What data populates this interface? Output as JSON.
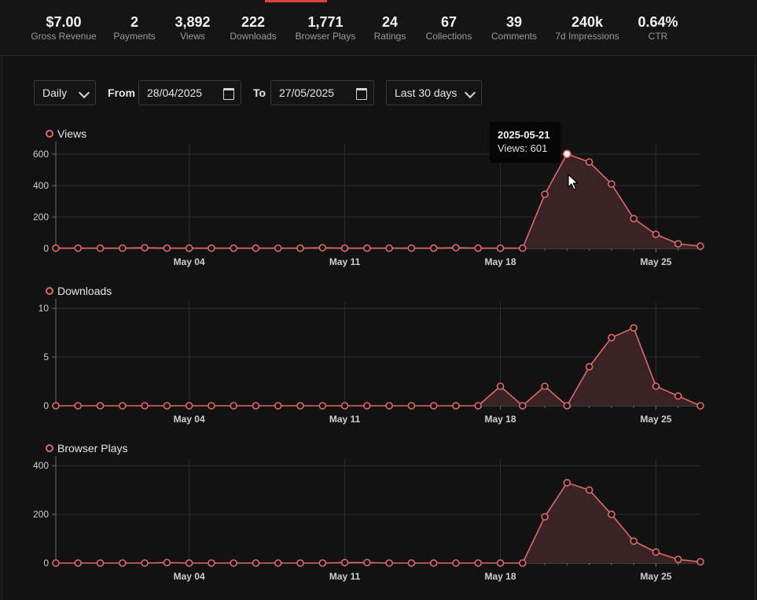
{
  "stats": [
    {
      "value": "$7.00",
      "label": "Gross Revenue"
    },
    {
      "value": "2",
      "label": "Payments"
    },
    {
      "value": "3,892",
      "label": "Views"
    },
    {
      "value": "222",
      "label": "Downloads"
    },
    {
      "value": "1,771",
      "label": "Browser Plays"
    },
    {
      "value": "24",
      "label": "Ratings"
    },
    {
      "value": "67",
      "label": "Collections"
    },
    {
      "value": "39",
      "label": "Comments"
    },
    {
      "value": "240k",
      "label": "7d Impressions"
    },
    {
      "value": "0.64%",
      "label": "CTR"
    }
  ],
  "controls": {
    "interval": "Daily",
    "from_label": "From",
    "from_value": "28/04/2025",
    "to_label": "To",
    "to_value": "27/05/2025",
    "range": "Last 30 days"
  },
  "tooltip": {
    "date": "2025-05-21",
    "text": "Views: 601"
  },
  "colors": {
    "series": "#e0686a",
    "area": "#3a2324",
    "highlight_fill": "#f0f0f0",
    "tab_accent": "#e0403d"
  },
  "icons": {
    "interval": "chevron-down-icon",
    "range": "chevron-down-icon",
    "date": "calendar-icon",
    "pointer": "mouse-cursor-icon"
  },
  "chart_data": [
    {
      "type": "area",
      "title": "Views",
      "x_start": "2025-04-28",
      "x_end": "2025-05-27",
      "x_ticks": [
        "May 04",
        "May 11",
        "May 18",
        "May 25"
      ],
      "ylim": [
        0,
        650
      ],
      "y_ticks": [
        0,
        200,
        400,
        600
      ],
      "grid": true,
      "values": [
        2,
        2,
        2,
        2,
        5,
        2,
        2,
        2,
        2,
        2,
        2,
        2,
        5,
        2,
        2,
        2,
        2,
        2,
        5,
        2,
        2,
        2,
        345,
        601,
        550,
        410,
        190,
        90,
        30,
        15
      ],
      "highlight_index": 23
    },
    {
      "type": "area",
      "title": "Downloads",
      "x_start": "2025-04-28",
      "x_end": "2025-05-27",
      "x_ticks": [
        "May 04",
        "May 11",
        "May 18",
        "May 25"
      ],
      "ylim": [
        0,
        10.5
      ],
      "y_ticks": [
        0,
        5,
        10
      ],
      "grid": true,
      "values": [
        0,
        0,
        0,
        0,
        0,
        0,
        0,
        0,
        0,
        0,
        0,
        0,
        0,
        0,
        0,
        0,
        0,
        0,
        0,
        0,
        2,
        0,
        2,
        0,
        4,
        7,
        8,
        2,
        1,
        0
      ]
    },
    {
      "type": "area",
      "title": "Browser Plays",
      "x_start": "2025-04-28",
      "x_end": "2025-05-27",
      "x_ticks": [
        "May 04",
        "May 11",
        "May 18",
        "May 25"
      ],
      "ylim": [
        0,
        420
      ],
      "y_ticks": [
        0,
        200,
        400
      ],
      "grid": true,
      "values": [
        0,
        0,
        0,
        0,
        0,
        2,
        0,
        0,
        0,
        0,
        0,
        0,
        0,
        2,
        2,
        0,
        0,
        0,
        0,
        0,
        0,
        0,
        190,
        330,
        300,
        200,
        90,
        45,
        15,
        5
      ]
    }
  ]
}
